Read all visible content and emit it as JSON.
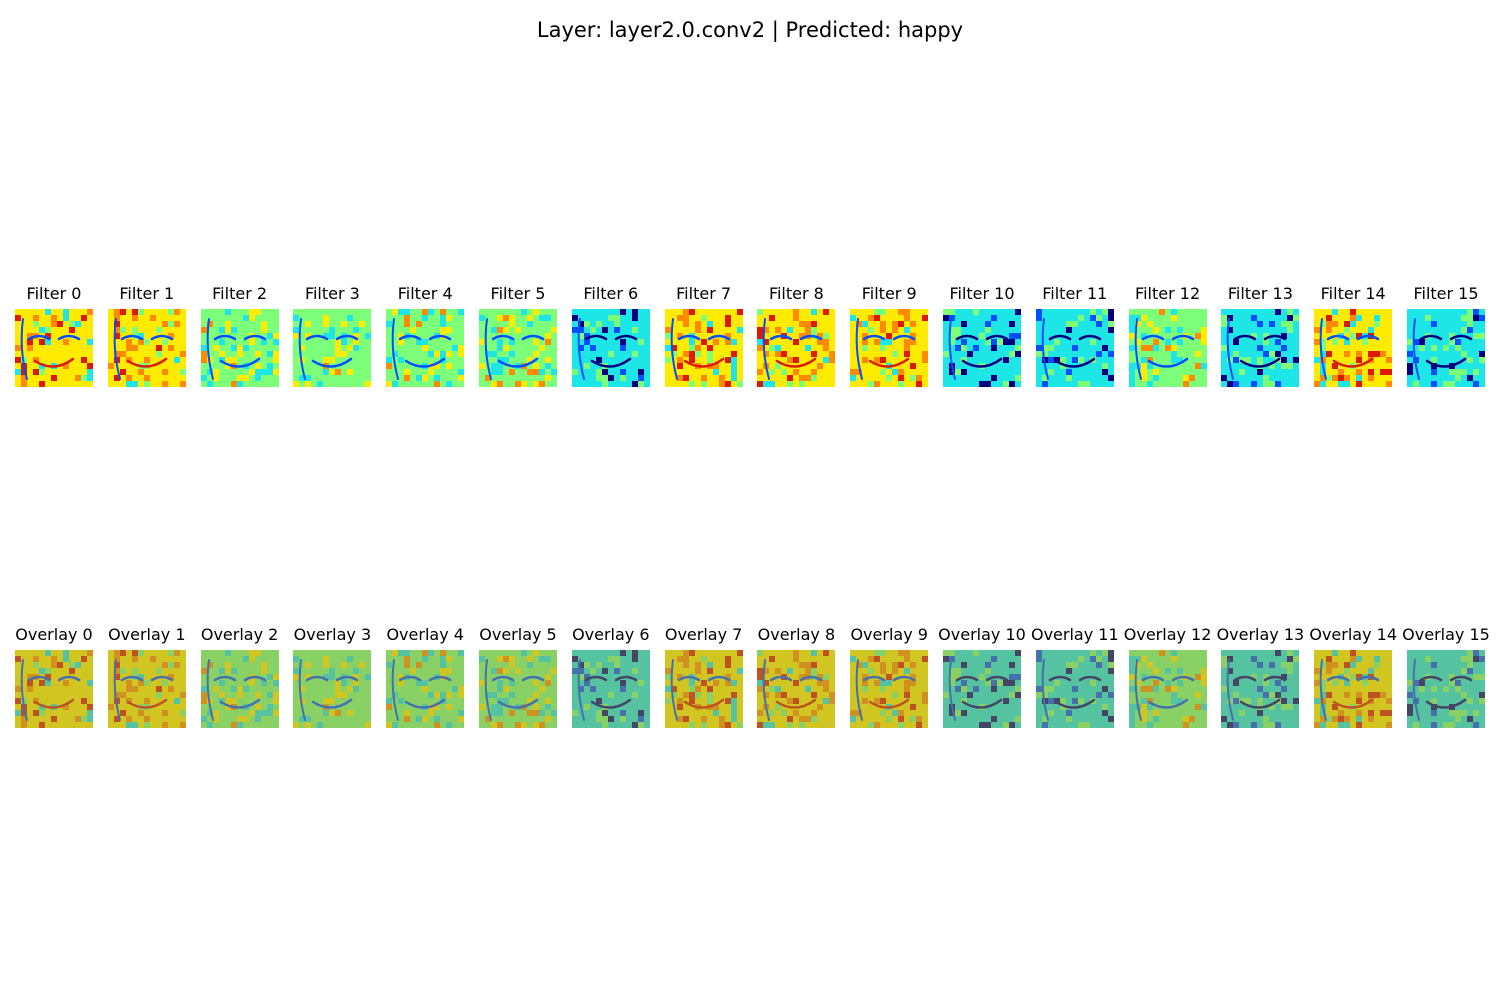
{
  "title": "Layer: layer2.0.conv2 | Predicted: happy",
  "rows": [
    {
      "row_id": "filters",
      "images": [
        {
          "label": "Filter 0",
          "tone": "warm"
        },
        {
          "label": "Filter 1",
          "tone": "warm"
        },
        {
          "label": "Filter 2",
          "tone": "mixed"
        },
        {
          "label": "Filter 3",
          "tone": "mixed"
        },
        {
          "label": "Filter 4",
          "tone": "mixed"
        },
        {
          "label": "Filter 5",
          "tone": "mixed"
        },
        {
          "label": "Filter 6",
          "tone": "cool"
        },
        {
          "label": "Filter 7",
          "tone": "warm"
        },
        {
          "label": "Filter 8",
          "tone": "warm"
        },
        {
          "label": "Filter 9",
          "tone": "warm"
        },
        {
          "label": "Filter 10",
          "tone": "cool"
        },
        {
          "label": "Filter 11",
          "tone": "cool"
        },
        {
          "label": "Filter 12",
          "tone": "mixed"
        },
        {
          "label": "Filter 13",
          "tone": "cool"
        },
        {
          "label": "Filter 14",
          "tone": "warm"
        },
        {
          "label": "Filter 15",
          "tone": "cool"
        }
      ]
    },
    {
      "row_id": "overlays",
      "images": [
        {
          "label": "Overlay 0",
          "tone": "warm"
        },
        {
          "label": "Overlay 1",
          "tone": "warm"
        },
        {
          "label": "Overlay 2",
          "tone": "mixed"
        },
        {
          "label": "Overlay 3",
          "tone": "mixed"
        },
        {
          "label": "Overlay 4",
          "tone": "mixed"
        },
        {
          "label": "Overlay 5",
          "tone": "mixed"
        },
        {
          "label": "Overlay 6",
          "tone": "cool"
        },
        {
          "label": "Overlay 7",
          "tone": "warm"
        },
        {
          "label": "Overlay 8",
          "tone": "warm"
        },
        {
          "label": "Overlay 9",
          "tone": "warm"
        },
        {
          "label": "Overlay 10",
          "tone": "cool"
        },
        {
          "label": "Overlay 11",
          "tone": "cool"
        },
        {
          "label": "Overlay 12",
          "tone": "mixed"
        },
        {
          "label": "Overlay 13",
          "tone": "cool"
        },
        {
          "label": "Overlay 14",
          "tone": "warm"
        },
        {
          "label": "Overlay 15",
          "tone": "cool"
        }
      ]
    }
  ],
  "colormap": {
    "name": "jet",
    "dark_blue": "#00007f",
    "blue": "#0050ff",
    "cyan": "#1ee6e6",
    "green": "#7dff7a",
    "yellow": "#ffeb00",
    "orange": "#ff8a00",
    "red": "#dd1a00",
    "overlay_tint": "#9a9a4a"
  }
}
